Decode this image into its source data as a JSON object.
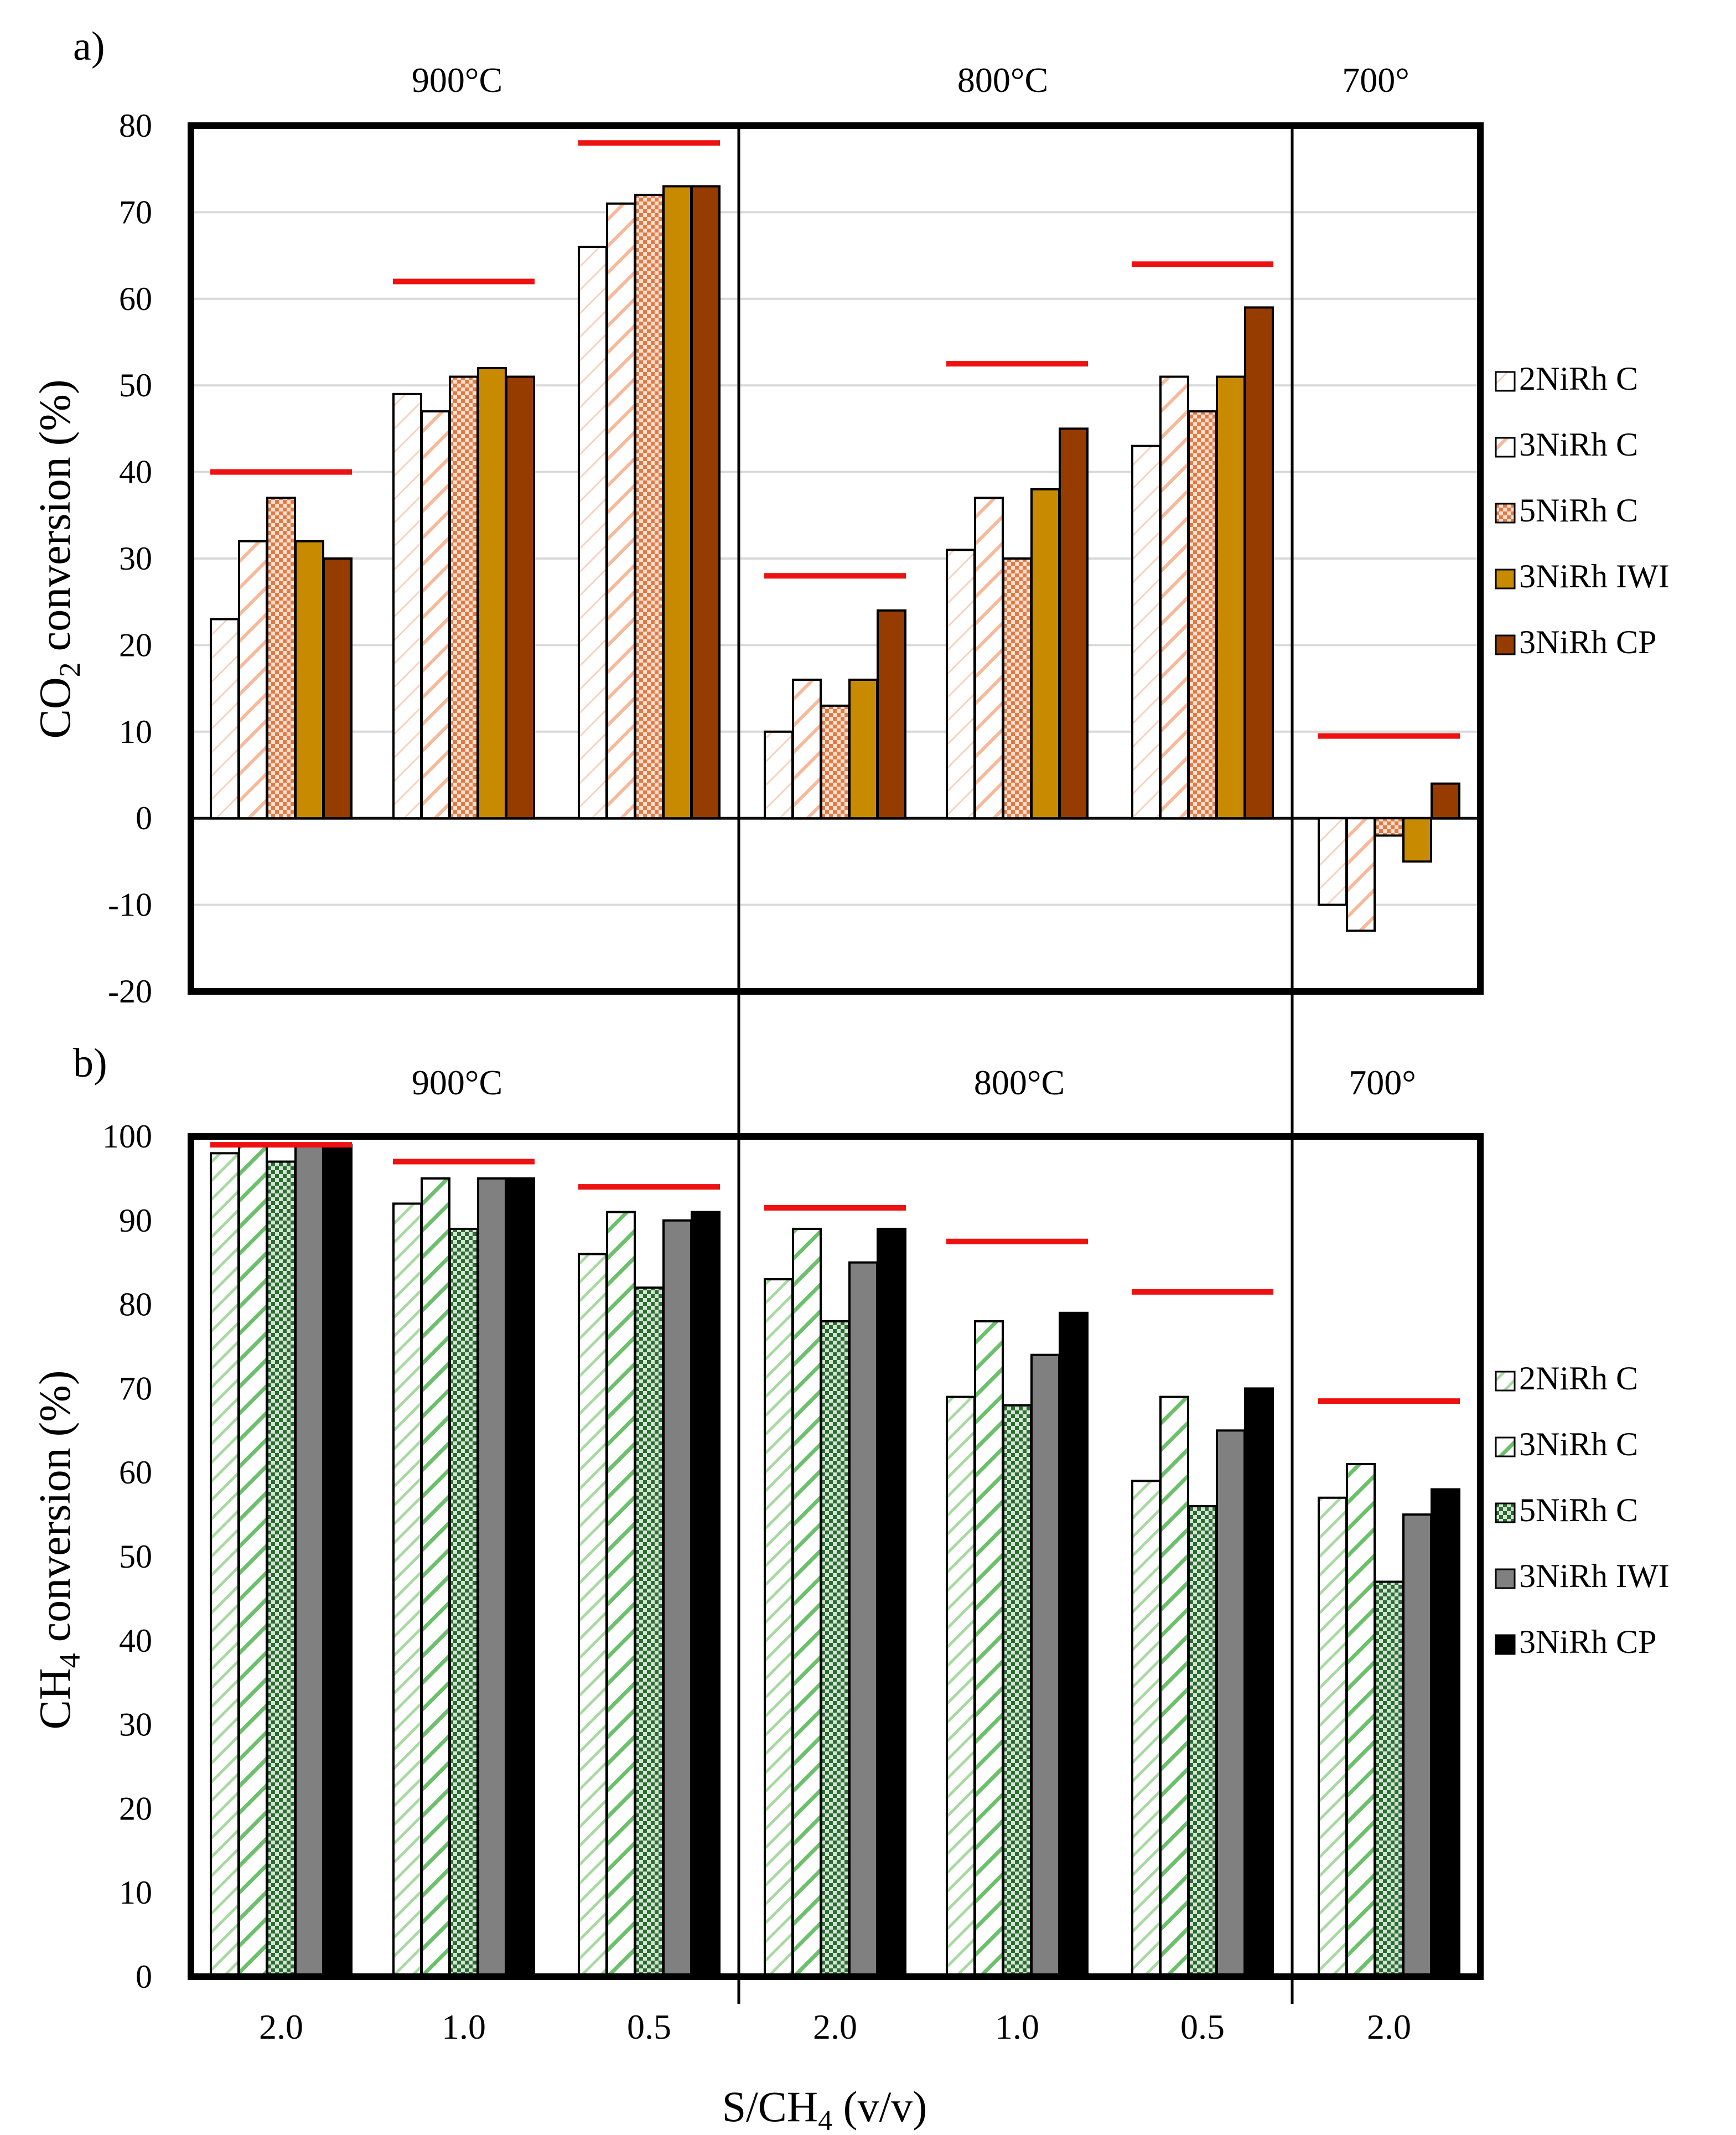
{
  "chart_data": [
    {
      "type": "bar",
      "panel_label": "a)",
      "ylabel_main": "CO",
      "ylabel_sub": "2",
      "ylabel_rest": " conversion (%)",
      "ylim": [
        -20,
        80
      ],
      "yticks": [
        "-20",
        "-10",
        "0",
        "10",
        "20",
        "30",
        "40",
        "50",
        "60",
        "70",
        "80"
      ],
      "grid": true,
      "temperature_labels": [
        "900°C",
        "800°C",
        "700°"
      ],
      "categories": [
        "2.0",
        "1.0",
        "0.5",
        "2.0",
        "1.0",
        "0.5",
        "2.0"
      ],
      "series": [
        {
          "name": "2NiRh C",
          "values": [
            23,
            49,
            66,
            10,
            31,
            43,
            -10
          ]
        },
        {
          "name": "3NiRh C",
          "values": [
            32,
            47,
            71,
            16,
            37,
            51,
            -13
          ]
        },
        {
          "name": "5NiRh C",
          "values": [
            37,
            51,
            72,
            13,
            30,
            47,
            -2
          ]
        },
        {
          "name": "3NiRh IWI",
          "values": [
            32,
            52,
            73,
            16,
            38,
            51,
            -5
          ]
        },
        {
          "name": "3NiRh CP",
          "values": [
            30,
            51,
            73,
            24,
            45,
            59,
            4
          ]
        }
      ],
      "equilibrium": [
        40,
        62,
        78,
        28,
        52.5,
        64,
        9.5
      ],
      "equilibrium_color": "#ee1111",
      "series_colors": [
        "#fbe6dc",
        "#f8c8ac",
        "#f0a070",
        "#c88a00",
        "#963c00"
      ],
      "legend_position": "right"
    },
    {
      "type": "bar",
      "panel_label": "b)",
      "ylabel_main": "CH",
      "ylabel_sub": "4",
      "ylabel_rest": " conversion (%)",
      "ylim": [
        0,
        100
      ],
      "yticks": [
        "0",
        "10",
        "20",
        "30",
        "40",
        "50",
        "60",
        "70",
        "80",
        "90",
        "100"
      ],
      "grid": false,
      "temperature_labels": [
        "900°C",
        "800°C",
        "700°"
      ],
      "categories": [
        "2.0",
        "1.0",
        "0.5",
        "2.0",
        "1.0",
        "0.5",
        "2.0"
      ],
      "xlabel_main": "S/CH",
      "xlabel_sub": "4",
      "xlabel_rest": " (v/v)",
      "series": [
        {
          "name": "2NiRh C",
          "values": [
            98,
            92,
            86,
            83,
            69,
            59,
            57
          ]
        },
        {
          "name": "3NiRh C",
          "values": [
            99,
            95,
            91,
            89,
            78,
            69,
            61
          ]
        },
        {
          "name": "5NiRh C",
          "values": [
            97,
            89,
            82,
            78,
            68,
            56,
            47
          ]
        },
        {
          "name": "3NiRh IWI",
          "values": [
            99,
            95,
            90,
            85,
            74,
            65,
            55
          ]
        },
        {
          "name": "3NiRh CP",
          "values": [
            99,
            95,
            91,
            89,
            79,
            70,
            58
          ]
        }
      ],
      "equilibrium": [
        99,
        97,
        94,
        91.5,
        87.5,
        81.5,
        68.5
      ],
      "equilibrium_color": "#ee1111",
      "series_colors": [
        "#a8d8a0",
        "#6cc06c",
        "#2f7a3a",
        "#808080",
        "#000000"
      ],
      "legend_position": "right"
    }
  ]
}
